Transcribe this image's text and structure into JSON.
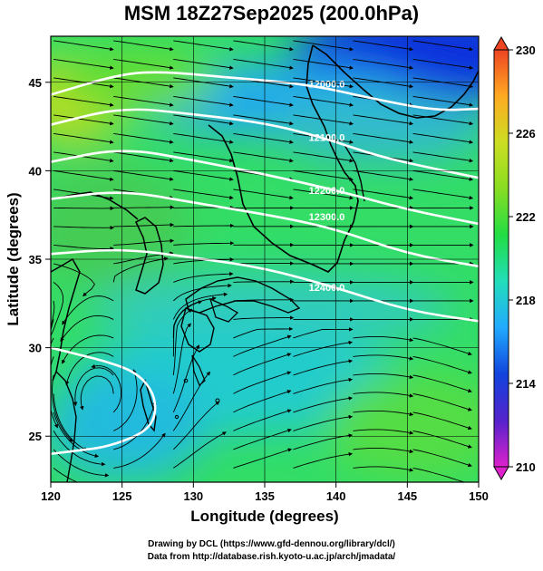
{
  "title": "MSM 18Z27Sep2025 (200.0hPa)",
  "x_axis": {
    "label": "Longitude (degrees)",
    "ticks": [
      "120",
      "125",
      "130",
      "135",
      "140",
      "145",
      "150"
    ],
    "range": [
      120,
      150
    ]
  },
  "y_axis": {
    "label": "Latitude  (degrees)",
    "ticks": [
      "25",
      "30",
      "35",
      "40",
      "45"
    ],
    "range": [
      22.4,
      47.6
    ]
  },
  "colorbar": {
    "ticks": [
      "210",
      "214",
      "218",
      "222",
      "226",
      "230"
    ],
    "range": [
      210,
      230
    ],
    "colors": [
      "#dd22cc",
      "#5522cc",
      "#1144dd",
      "#22aaff",
      "#22ddbb",
      "#22dd44",
      "#88dd22",
      "#ccdd22",
      "#ffaa22",
      "#ee4422"
    ]
  },
  "contours": {
    "labels": [
      "12000.0",
      "12100.0",
      "12200.0",
      "12300.0",
      "12400.0"
    ],
    "lines": [
      {
        "label": "12000.0",
        "points": [
          [
            120,
            44.3
          ],
          [
            125,
            45.5
          ],
          [
            128,
            45.6
          ],
          [
            132,
            45.3
          ],
          [
            138,
            44.9
          ],
          [
            143,
            44.0
          ],
          [
            147,
            43.4
          ],
          [
            150,
            43.5
          ]
        ]
      },
      {
        "label": "12100.0",
        "points": [
          [
            120,
            42.6
          ],
          [
            125,
            43.6
          ],
          [
            130,
            43.2
          ],
          [
            135,
            42.7
          ],
          [
            139,
            41.9
          ],
          [
            143,
            40.8
          ],
          [
            147,
            40.1
          ],
          [
            150,
            39.6
          ]
        ]
      },
      {
        "label": "12200.0",
        "points": [
          [
            120,
            40.5
          ],
          [
            125,
            41.3
          ],
          [
            130,
            40.6
          ],
          [
            135,
            39.8
          ],
          [
            140,
            38.9
          ],
          [
            145,
            37.8
          ],
          [
            150,
            37.0
          ]
        ]
      },
      {
        "label": "12300.0",
        "points": [
          [
            120,
            38.4
          ],
          [
            125,
            38.9
          ],
          [
            130,
            38.2
          ],
          [
            136,
            37.4
          ],
          [
            140,
            36.7
          ],
          [
            145,
            35.3
          ],
          [
            150,
            34.6
          ]
        ]
      },
      {
        "label": "12400.0",
        "points": [
          [
            120,
            35.3
          ],
          [
            125,
            35.6
          ],
          [
            130,
            35.1
          ],
          [
            135,
            34.5
          ],
          [
            140,
            33.4
          ],
          [
            145,
            32.1
          ],
          [
            150,
            31.5
          ]
        ]
      },
      {
        "label": "",
        "points": [
          [
            120,
            30.0
          ],
          [
            122,
            29.6
          ],
          [
            124,
            29.2
          ],
          [
            126,
            28.6
          ],
          [
            127.2,
            27.5
          ],
          [
            127.4,
            26.2
          ],
          [
            126.6,
            25.2
          ],
          [
            124,
            24.4
          ],
          [
            122,
            24.2
          ],
          [
            120,
            24.0
          ]
        ]
      }
    ]
  },
  "credits": {
    "line1": "Drawing by DCL (https://www.gfd-dennou.org/library/dcl/)",
    "line2": "Data from http://database.rish.kyoto-u.ac.jp/arch/jmadata/"
  }
}
